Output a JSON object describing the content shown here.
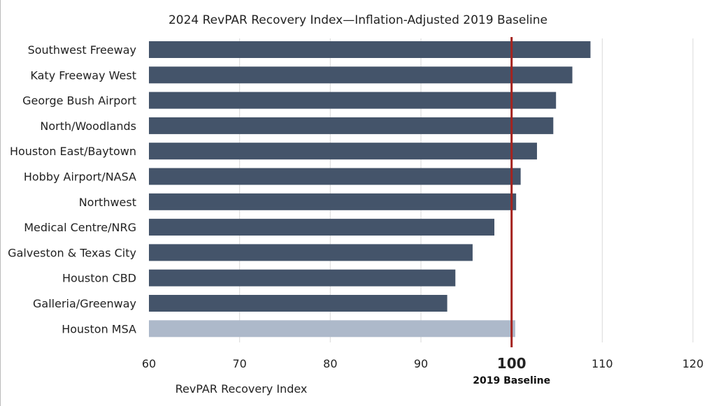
{
  "chart_data": {
    "type": "bar",
    "orientation": "horizontal",
    "title": "2024 RevPAR Recovery Index—Inflation-Adjusted 2019 Baseline",
    "xlabel": "RevPAR Recovery Index",
    "ylabel": "",
    "xlim": [
      60,
      120
    ],
    "xticks": [
      60,
      70,
      80,
      90,
      100,
      110,
      120
    ],
    "grid": true,
    "categories": [
      "Southwest Freeway",
      "Katy Freeway West",
      "George Bush Airport",
      "North/Woodlands",
      "Houston East/Baytown",
      "Hobby Airport/NASA",
      "Northwest",
      "Medical Centre/NRG",
      "Galveston & Texas City",
      "Houston CBD",
      "Galleria/Greenway",
      "Houston MSA"
    ],
    "values": [
      108.7,
      106.7,
      104.9,
      104.6,
      102.8,
      101.0,
      100.5,
      98.1,
      95.7,
      93.8,
      92.9,
      100.4
    ],
    "highlight_category": "Houston MSA",
    "reference_line": {
      "value": 100,
      "label": "2019 Baseline"
    },
    "colors": {
      "bar": "#44546a",
      "highlight": "#adb9ca",
      "reference": "#a5231e",
      "grid": "#d9d9d9"
    }
  }
}
